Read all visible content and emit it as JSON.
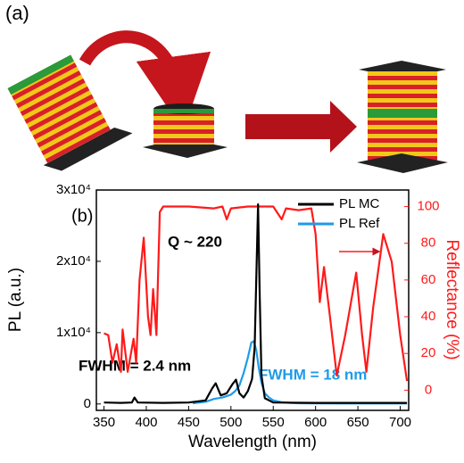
{
  "panel_a_label": "(a)",
  "chart_data": {
    "type": "line",
    "panel_label": "(b)",
    "x_label": "Wavelength (nm)",
    "y_label": "PL (a.u.)",
    "y2_label": "Reflectance (%)",
    "annotations": [
      "Q ~ 220",
      "FWHM = 2.4 nm",
      "FWHM = 18 nm"
    ],
    "xlim": [
      341,
      710
    ],
    "xticks": [
      350,
      400,
      450,
      500,
      550,
      600,
      650,
      700
    ],
    "ylim": [
      -900,
      30000
    ],
    "yticks": [
      0,
      {
        "value": 10000,
        "label": "1x10⁴"
      },
      {
        "value": 20000,
        "label": "2x10⁴"
      },
      {
        "value": 30000,
        "label": "3x10⁴"
      }
    ],
    "y2lim": [
      -11,
      109
    ],
    "y2ticks": [
      0,
      20,
      40,
      60,
      80,
      100
    ],
    "legend": "upper right",
    "series": [
      {
        "name": "PL MC",
        "color": "#000000",
        "x": [
          350,
          370,
          383,
          386,
          390,
          420,
          450,
          470,
          478,
          482,
          488,
          495,
          502,
          506,
          510,
          515,
          520,
          525,
          528,
          530,
          532,
          534,
          536,
          540,
          550,
          600,
          650,
          700,
          708
        ],
        "values": [
          200,
          150,
          200,
          900,
          200,
          150,
          200,
          500,
          2200,
          2900,
          1200,
          1500,
          2800,
          3400,
          1500,
          900,
          1800,
          3500,
          8000,
          18000,
          28000,
          15000,
          4000,
          800,
          200,
          150,
          150,
          150,
          150
        ]
      },
      {
        "name": "PL Ref",
        "color": "#1e9be8",
        "x": [
          455,
          470,
          480,
          490,
          500,
          505,
          510,
          515,
          520,
          524,
          527,
          530,
          533,
          536,
          540,
          545,
          550,
          560,
          570,
          580,
          600,
          650,
          708
        ],
        "values": [
          100,
          300,
          700,
          900,
          1300,
          1800,
          2600,
          4300,
          6500,
          8600,
          8800,
          7500,
          5000,
          3000,
          1500,
          900,
          500,
          250,
          150,
          100,
          80,
          60,
          60
        ]
      },
      {
        "color": "#ff1a1a",
        "axis": "y2",
        "x": [
          350,
          355,
          360,
          365,
          370,
          372,
          378,
          385,
          388,
          392,
          397,
          402,
          405,
          408,
          412,
          416,
          420,
          450,
          480,
          490,
          495,
          500,
          520,
          550,
          560,
          565,
          580,
          595,
          600,
          605,
          610,
          617,
          625,
          635,
          648,
          655,
          660,
          668,
          680,
          690,
          700,
          708
        ],
        "values": [
          31,
          30,
          15,
          25,
          10,
          33,
          10,
          28,
          15,
          60,
          83,
          40,
          30,
          55,
          30,
          97,
          100,
          100,
          99,
          100,
          93,
          99,
          100,
          100,
          93,
          99,
          98,
          99,
          85,
          48,
          67,
          40,
          8,
          30,
          64,
          30,
          10,
          45,
          85,
          70,
          30,
          5
        ]
      }
    ]
  }
}
